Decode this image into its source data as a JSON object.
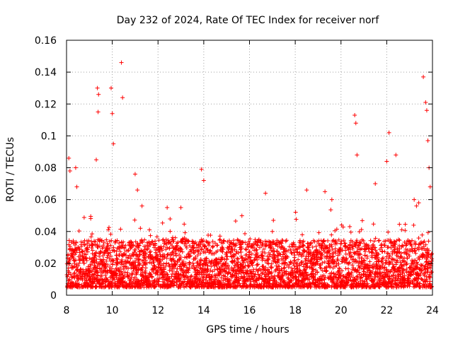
{
  "chart_data": {
    "type": "scatter",
    "title": "Day 232 of 2024, Rate Of TEC Index for receiver norf",
    "xlabel": "GPS time / hours",
    "ylabel": "ROTI / TECUs",
    "xlim": [
      8,
      24
    ],
    "ylim": [
      0,
      0.16
    ],
    "xticks": [
      8,
      10,
      12,
      14,
      16,
      18,
      20,
      22,
      24
    ],
    "xtick_labels": [
      "8",
      "10",
      "12",
      "14",
      "16",
      "18",
      "20",
      "22",
      "24"
    ],
    "yticks": [
      0,
      0.02,
      0.04,
      0.06,
      0.08,
      0.1,
      0.12,
      0.14,
      0.16
    ],
    "ytick_labels": [
      "0",
      "0.02",
      "0.04",
      "0.06",
      "0.08",
      "0.1",
      "0.12",
      "0.14",
      "0.16"
    ],
    "grid": true,
    "marker": "+",
    "color": "#ff0000",
    "series": [
      {
        "name": "ROTI",
        "description": "dense cloud of points, mostly 0.005–0.035 TECU/s with isolated spikes",
        "baseline_band": [
          0.005,
          0.035
        ],
        "notable_points": {
          "x": [
            8.1,
            8.15,
            8.4,
            8.45,
            9.35,
            9.4,
            9.38,
            9.3,
            9.95,
            10.0,
            10.05,
            10.4,
            10.45,
            11.0,
            11.1,
            11.3,
            12.4,
            13.0,
            13.9,
            14.0,
            16.7,
            17.0,
            18.5,
            19.3,
            19.6,
            20.6,
            20.65,
            20.7,
            21.5,
            22.0,
            22.1,
            22.4,
            23.2,
            23.3,
            23.4,
            23.6,
            23.7,
            23.75,
            23.8,
            23.85,
            23.9
          ],
          "y": [
            0.086,
            0.078,
            0.08,
            0.068,
            0.13,
            0.126,
            0.115,
            0.085,
            0.13,
            0.114,
            0.095,
            0.146,
            0.124,
            0.076,
            0.066,
            0.056,
            0.055,
            0.055,
            0.079,
            0.072,
            0.064,
            0.04,
            0.066,
            0.065,
            0.06,
            0.113,
            0.108,
            0.088,
            0.07,
            0.084,
            0.102,
            0.088,
            0.06,
            0.056,
            0.058,
            0.137,
            0.121,
            0.116,
            0.097,
            0.08,
            0.068
          ]
        }
      }
    ]
  }
}
